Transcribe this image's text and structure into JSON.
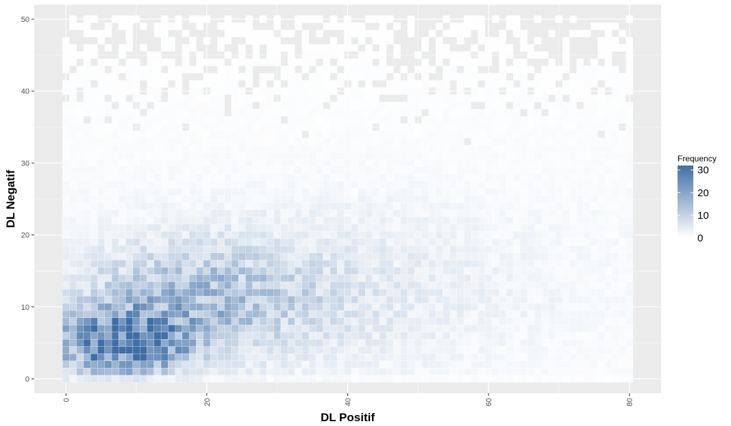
{
  "chart_data": {
    "type": "heatmap",
    "title": "",
    "xlabel": "DL Positif",
    "ylabel": "DL Negatif",
    "xlim": [
      -4.5,
      84.5
    ],
    "ylim": [
      -2,
      52
    ],
    "x_ticks": [
      "0",
      "20",
      "40",
      "60",
      "80"
    ],
    "y_ticks": [
      "0",
      "10",
      "20",
      "30",
      "40",
      "50"
    ],
    "x_tick_values": [
      0,
      20,
      40,
      60,
      80
    ],
    "y_tick_values": [
      0,
      10,
      20,
      30,
      40,
      50
    ],
    "grid": true,
    "bin_width": 1,
    "x_bins": [
      0,
      80
    ],
    "y_bins": [
      0,
      50
    ],
    "legend": {
      "title": "Frequency",
      "position": "right",
      "labels": [
        "0",
        "10",
        "20",
        "30"
      ],
      "values": [
        0,
        10,
        20,
        30
      ],
      "min": 0,
      "max": 32,
      "low_color": "#ffffff",
      "high_color": "#3f6ea6"
    },
    "panel_color": "#ebebeb",
    "grid_color": "#ffffff",
    "density_model": "Counts are highest near DL Positif 3-15 and DL Negatif 2-8 (peak about 30), spreading and fading toward higher values; sparse light cells cover most of the area up to 80 x 50."
  }
}
